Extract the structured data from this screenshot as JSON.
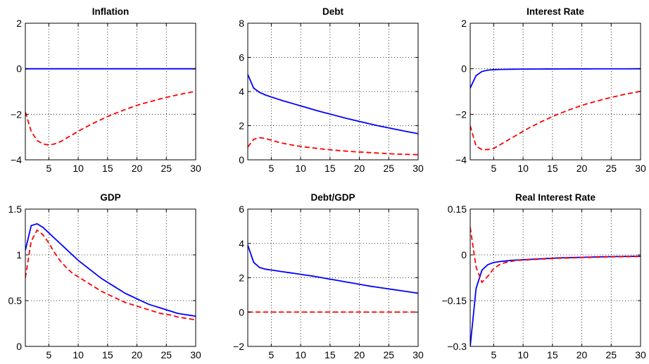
{
  "chart_data": [
    {
      "type": "line",
      "title": "Inflation",
      "xlim": [
        1,
        30
      ],
      "ylim": [
        -4,
        2
      ],
      "xticks": [
        5,
        10,
        15,
        20,
        25,
        30
      ],
      "yticks": [
        -4,
        -2,
        0,
        2
      ],
      "ytick_labels": [
        "−4",
        "−2",
        "0",
        "2"
      ],
      "grid": true,
      "series": [
        {
          "color": "#0000ff",
          "style": "solid",
          "x": [
            1,
            2,
            3,
            4,
            5,
            6,
            7,
            8,
            9,
            10,
            11,
            12,
            13,
            14,
            15,
            16,
            17,
            18,
            19,
            20,
            21,
            22,
            23,
            24,
            25,
            26,
            27,
            28,
            29,
            30
          ],
          "y": [
            0,
            0,
            0,
            0,
            0,
            0,
            0,
            0,
            0,
            0,
            0,
            0,
            0,
            0,
            0,
            0,
            0,
            0,
            0,
            0,
            0,
            0,
            0,
            0,
            0,
            0,
            0,
            0,
            0,
            0
          ]
        },
        {
          "color": "#ff0000",
          "style": "dashed",
          "x": [
            1,
            2,
            3,
            4,
            5,
            6,
            7,
            8,
            9,
            10,
            11,
            12,
            13,
            14,
            15,
            16,
            17,
            18,
            19,
            20,
            21,
            22,
            23,
            24,
            25,
            26,
            27,
            28,
            29,
            30
          ],
          "y": [
            -1.9,
            -2.75,
            -3.15,
            -3.3,
            -3.35,
            -3.3,
            -3.2,
            -3.05,
            -2.9,
            -2.75,
            -2.6,
            -2.47,
            -2.34,
            -2.22,
            -2.1,
            -1.99,
            -1.89,
            -1.79,
            -1.7,
            -1.61,
            -1.53,
            -1.46,
            -1.39,
            -1.32,
            -1.26,
            -1.2,
            -1.14,
            -1.09,
            -1.04,
            -0.99
          ]
        }
      ]
    },
    {
      "type": "line",
      "title": "Debt",
      "xlim": [
        1,
        30
      ],
      "ylim": [
        0,
        8
      ],
      "xticks": [
        5,
        10,
        15,
        20,
        25,
        30
      ],
      "yticks": [
        0,
        2,
        4,
        6,
        8
      ],
      "ytick_labels": [
        "0",
        "2",
        "4",
        "6",
        "8"
      ],
      "grid": true,
      "series": [
        {
          "color": "#0000ff",
          "style": "solid",
          "x": [
            1,
            2,
            3,
            4,
            5,
            6,
            7,
            8,
            9,
            10,
            11,
            12,
            13,
            14,
            15,
            16,
            17,
            18,
            19,
            20,
            21,
            22,
            23,
            24,
            25,
            26,
            27,
            28,
            29,
            30
          ],
          "y": [
            5.0,
            4.2,
            3.95,
            3.8,
            3.68,
            3.57,
            3.46,
            3.36,
            3.26,
            3.16,
            3.06,
            2.96,
            2.86,
            2.77,
            2.68,
            2.59,
            2.5,
            2.41,
            2.33,
            2.25,
            2.17,
            2.09,
            2.01,
            1.94,
            1.87,
            1.8,
            1.73,
            1.66,
            1.6,
            1.53
          ]
        },
        {
          "color": "#ff0000",
          "style": "dashed",
          "x": [
            1,
            2,
            3,
            4,
            5,
            6,
            7,
            8,
            9,
            10,
            11,
            12,
            13,
            14,
            15,
            16,
            17,
            18,
            19,
            20,
            21,
            22,
            23,
            24,
            25,
            26,
            27,
            28,
            29,
            30
          ],
          "y": [
            0.75,
            1.2,
            1.3,
            1.25,
            1.15,
            1.05,
            0.97,
            0.9,
            0.84,
            0.79,
            0.74,
            0.7,
            0.66,
            0.62,
            0.59,
            0.56,
            0.53,
            0.5,
            0.48,
            0.46,
            0.44,
            0.42,
            0.4,
            0.38,
            0.36,
            0.34,
            0.33,
            0.32,
            0.31,
            0.3
          ]
        }
      ]
    },
    {
      "type": "line",
      "title": "Interest Rate",
      "xlim": [
        1,
        30
      ],
      "ylim": [
        -4,
        2
      ],
      "xticks": [
        5,
        10,
        15,
        20,
        25,
        30
      ],
      "yticks": [
        -4,
        -2,
        0,
        2
      ],
      "ytick_labels": [
        "−4",
        "−2",
        "0",
        "2"
      ],
      "grid": true,
      "series": [
        {
          "color": "#0000ff",
          "style": "solid",
          "x": [
            1,
            2,
            3,
            4,
            5,
            6,
            7,
            8,
            9,
            10,
            11,
            12,
            13,
            14,
            15,
            16,
            17,
            18,
            19,
            20,
            21,
            22,
            23,
            24,
            25,
            26,
            27,
            28,
            29,
            30
          ],
          "y": [
            -0.85,
            -0.3,
            -0.12,
            -0.06,
            -0.04,
            -0.03,
            -0.025,
            -0.02,
            -0.018,
            -0.015,
            -0.013,
            -0.011,
            -0.01,
            -0.009,
            -0.008,
            -0.007,
            -0.006,
            -0.005,
            -0.005,
            -0.004,
            -0.004,
            -0.003,
            -0.003,
            -0.003,
            -0.002,
            -0.002,
            -0.002,
            -0.002,
            -0.001,
            -0.001
          ]
        },
        {
          "color": "#ff0000",
          "style": "dashed",
          "x": [
            1,
            2,
            3,
            4,
            5,
            6,
            7,
            8,
            9,
            10,
            11,
            12,
            13,
            14,
            15,
            16,
            17,
            18,
            19,
            20,
            21,
            22,
            23,
            24,
            25,
            26,
            27,
            28,
            29,
            30
          ],
          "y": [
            -2.5,
            -3.4,
            -3.55,
            -3.55,
            -3.5,
            -3.35,
            -3.2,
            -3.05,
            -2.9,
            -2.75,
            -2.6,
            -2.47,
            -2.34,
            -2.22,
            -2.1,
            -1.99,
            -1.89,
            -1.79,
            -1.7,
            -1.61,
            -1.53,
            -1.46,
            -1.39,
            -1.32,
            -1.26,
            -1.2,
            -1.14,
            -1.09,
            -1.04,
            -0.99
          ]
        }
      ]
    },
    {
      "type": "line",
      "title": "GDP",
      "xlim": [
        1,
        30
      ],
      "ylim": [
        0,
        1.5
      ],
      "xticks": [
        5,
        10,
        15,
        20,
        25,
        30
      ],
      "yticks": [
        0,
        0.5,
        1,
        1.5
      ],
      "ytick_labels": [
        "0",
        "0.5",
        "1",
        "1.5"
      ],
      "grid": true,
      "series": [
        {
          "color": "#0000ff",
          "style": "solid",
          "x": [
            1,
            2,
            3,
            4,
            5,
            6,
            7,
            8,
            9,
            10,
            11,
            12,
            13,
            14,
            15,
            16,
            17,
            18,
            19,
            20,
            21,
            22,
            23,
            24,
            25,
            26,
            27,
            28,
            29,
            30
          ],
          "y": [
            1.05,
            1.32,
            1.34,
            1.3,
            1.24,
            1.18,
            1.12,
            1.06,
            1.0,
            0.94,
            0.89,
            0.84,
            0.79,
            0.74,
            0.7,
            0.66,
            0.62,
            0.58,
            0.55,
            0.52,
            0.49,
            0.46,
            0.44,
            0.42,
            0.4,
            0.38,
            0.36,
            0.35,
            0.34,
            0.33
          ]
        },
        {
          "color": "#ff0000",
          "style": "dashed",
          "x": [
            1,
            2,
            3,
            4,
            5,
            6,
            7,
            8,
            9,
            10,
            11,
            12,
            13,
            14,
            15,
            16,
            17,
            18,
            19,
            20,
            21,
            22,
            23,
            24,
            25,
            26,
            27,
            28,
            29,
            30
          ],
          "y": [
            0.75,
            1.15,
            1.27,
            1.22,
            1.13,
            1.02,
            0.93,
            0.86,
            0.8,
            0.76,
            0.72,
            0.68,
            0.64,
            0.6,
            0.57,
            0.54,
            0.51,
            0.48,
            0.46,
            0.44,
            0.42,
            0.4,
            0.38,
            0.36,
            0.35,
            0.34,
            0.32,
            0.31,
            0.3,
            0.29
          ]
        }
      ]
    },
    {
      "type": "line",
      "title": "Debt/GDP",
      "xlim": [
        1,
        30
      ],
      "ylim": [
        -2,
        6
      ],
      "xticks": [
        5,
        10,
        15,
        20,
        25,
        30
      ],
      "yticks": [
        -2,
        0,
        2,
        4,
        6
      ],
      "ytick_labels": [
        "−2",
        "0",
        "2",
        "4",
        "6"
      ],
      "grid": true,
      "series": [
        {
          "color": "#0000ff",
          "style": "solid",
          "x": [
            1,
            2,
            3,
            4,
            5,
            6,
            7,
            8,
            9,
            10,
            11,
            12,
            13,
            14,
            15,
            16,
            17,
            18,
            19,
            20,
            21,
            22,
            23,
            24,
            25,
            26,
            27,
            28,
            29,
            30
          ],
          "y": [
            3.9,
            2.9,
            2.6,
            2.5,
            2.45,
            2.4,
            2.35,
            2.3,
            2.25,
            2.2,
            2.15,
            2.1,
            2.04,
            1.98,
            1.92,
            1.86,
            1.8,
            1.74,
            1.68,
            1.62,
            1.56,
            1.5,
            1.45,
            1.4,
            1.35,
            1.3,
            1.25,
            1.2,
            1.15,
            1.1
          ]
        },
        {
          "color": "#ff0000",
          "style": "dashed",
          "x": [
            1,
            2,
            3,
            4,
            5,
            6,
            7,
            8,
            9,
            10,
            11,
            12,
            13,
            14,
            15,
            16,
            17,
            18,
            19,
            20,
            21,
            22,
            23,
            24,
            25,
            26,
            27,
            28,
            29,
            30
          ],
          "y": [
            0,
            0,
            0,
            0,
            0,
            0,
            0,
            0,
            0,
            0,
            0,
            0,
            0,
            0,
            0,
            0,
            0,
            0,
            0,
            0,
            0,
            0,
            0,
            0,
            0,
            0,
            0,
            0,
            0,
            0
          ]
        }
      ]
    },
    {
      "type": "line",
      "title": "Real Interest Rate",
      "xlim": [
        1,
        30
      ],
      "ylim": [
        -0.3,
        0.15
      ],
      "xticks": [
        5,
        10,
        15,
        20,
        25,
        30
      ],
      "yticks": [
        -0.3,
        -0.15,
        0,
        0.15
      ],
      "ytick_labels": [
        "−0.3",
        "−0.15",
        "0",
        "0.15"
      ],
      "grid": true,
      "series": [
        {
          "color": "#0000ff",
          "style": "solid",
          "x": [
            1,
            2,
            3,
            4,
            5,
            6,
            7,
            8,
            9,
            10,
            11,
            12,
            13,
            14,
            15,
            16,
            17,
            18,
            19,
            20,
            21,
            22,
            23,
            24,
            25,
            26,
            27,
            28,
            29,
            30
          ],
          "y": [
            -0.3,
            -0.11,
            -0.05,
            -0.032,
            -0.025,
            -0.022,
            -0.02,
            -0.018,
            -0.017,
            -0.016,
            -0.015,
            -0.014,
            -0.013,
            -0.012,
            -0.011,
            -0.01,
            -0.0095,
            -0.009,
            -0.0085,
            -0.008,
            -0.0075,
            -0.007,
            -0.0065,
            -0.006,
            -0.0058,
            -0.0055,
            -0.0052,
            -0.005,
            -0.0048,
            -0.0045
          ]
        },
        {
          "color": "#ff0000",
          "style": "dashed",
          "x": [
            1,
            2,
            3,
            4,
            5,
            6,
            7,
            8,
            9,
            10,
            11,
            12,
            13,
            14,
            15,
            16,
            17,
            18,
            19,
            20,
            21,
            22,
            23,
            24,
            25,
            26,
            27,
            28,
            29,
            30
          ],
          "y": [
            0.09,
            -0.04,
            -0.09,
            -0.07,
            -0.045,
            -0.032,
            -0.025,
            -0.021,
            -0.018,
            -0.017,
            -0.016,
            -0.015,
            -0.014,
            -0.013,
            -0.012,
            -0.011,
            -0.0105,
            -0.01,
            -0.0095,
            -0.009,
            -0.0085,
            -0.008,
            -0.0075,
            -0.007,
            -0.0067,
            -0.0063,
            -0.006,
            -0.0057,
            -0.0054,
            -0.005
          ]
        }
      ]
    }
  ]
}
